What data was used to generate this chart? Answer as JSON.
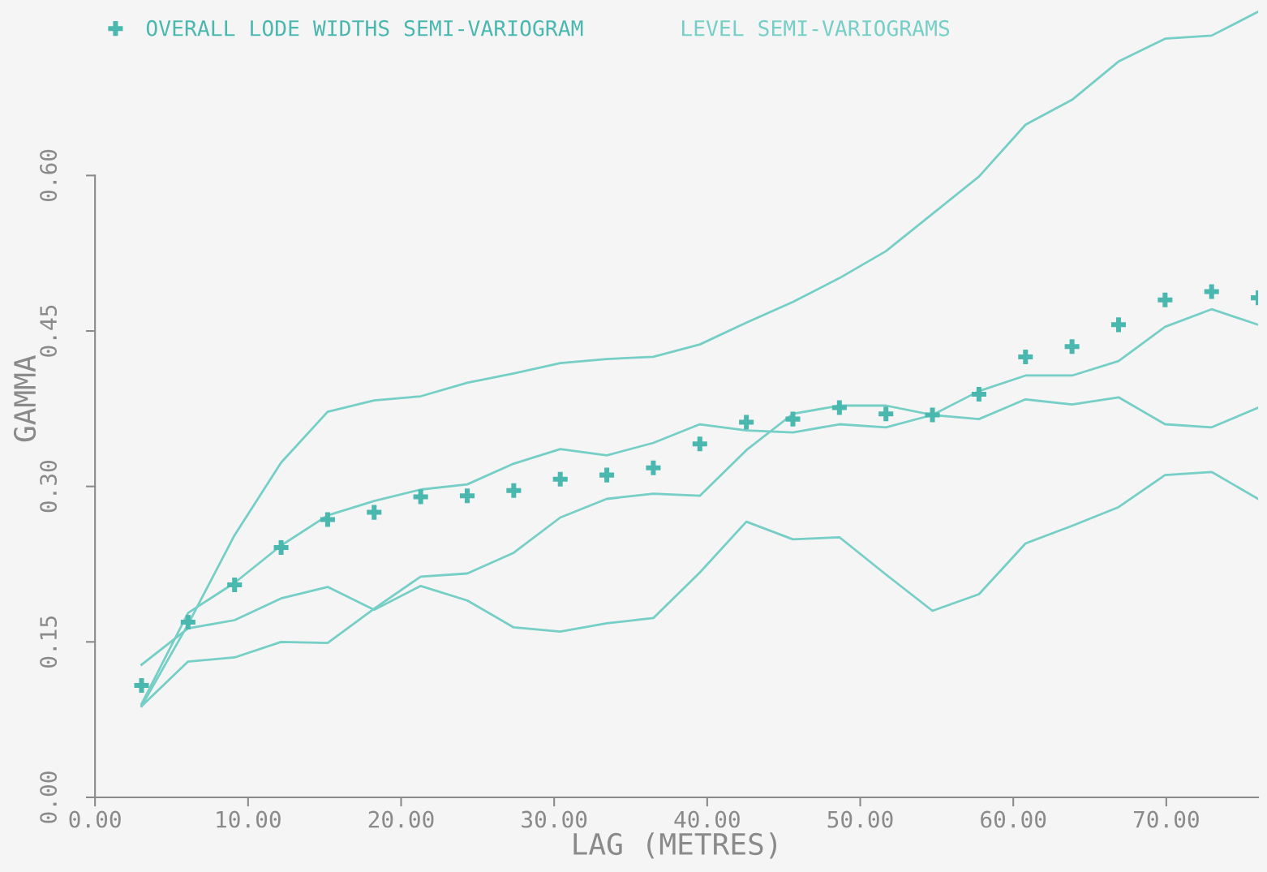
{
  "chart_data": {
    "type": "line",
    "xlabel": "LAG (METRES)",
    "ylabel": "GAMMA",
    "x": [
      3.04,
      6.08,
      9.12,
      12.16,
      15.2,
      18.24,
      21.28,
      24.32,
      27.36,
      30.4,
      33.44,
      36.48,
      39.52,
      42.56,
      45.6,
      48.64,
      51.68,
      54.72,
      57.76,
      60.8,
      63.84,
      66.88,
      69.92,
      72.96,
      76.0
    ],
    "series": [
      {
        "name": "OVERALL LODE WIDTHS SEMI-VARIOGRAM",
        "type": "scatter",
        "marker": "cross",
        "color": "#4bb8b0",
        "values": [
          0.108,
          0.169,
          0.205,
          0.241,
          0.268,
          0.275,
          0.29,
          0.291,
          0.296,
          0.307,
          0.311,
          0.318,
          0.341,
          0.362,
          0.365,
          0.376,
          0.37,
          0.369,
          0.389,
          0.425,
          0.435,
          0.456,
          0.48,
          0.488,
          0.482
        ]
      },
      {
        "name": "LEVEL SEMI-VARIOGRAMS",
        "color": "#76cfc6",
        "values": [
          0.088,
          0.167,
          0.253,
          0.323,
          0.372,
          0.383,
          0.387,
          0.4,
          0.409,
          0.419,
          0.423,
          0.425,
          0.437,
          0.458,
          0.478,
          0.501,
          0.527,
          0.563,
          0.599,
          0.649,
          0.673,
          0.71,
          0.732,
          0.735,
          0.758
        ]
      },
      {
        "color": "#76cfc6",
        "values": [
          0.128,
          0.163,
          0.171,
          0.192,
          0.203,
          0.181,
          0.204,
          0.19,
          0.164,
          0.16,
          0.168,
          0.173,
          0.217,
          0.266,
          0.249,
          0.251,
          0.215,
          0.18,
          0.196,
          0.245,
          0.262,
          0.28,
          0.311,
          0.314,
          0.288
        ]
      },
      {
        "color": "#76cfc6",
        "values": [
          0.09,
          0.178,
          0.207,
          0.243,
          0.272,
          0.286,
          0.297,
          0.302,
          0.322,
          0.336,
          0.33,
          0.342,
          0.36,
          0.354,
          0.352,
          0.36,
          0.357,
          0.369,
          0.365,
          0.384,
          0.379,
          0.386,
          0.36,
          0.357,
          0.376
        ]
      },
      {
        "color": "#76cfc6",
        "values": [
          0.088,
          0.131,
          0.135,
          0.15,
          0.149,
          0.182,
          0.213,
          0.216,
          0.236,
          0.27,
          0.288,
          0.293,
          0.291,
          0.335,
          0.37,
          0.378,
          0.378,
          0.369,
          0.392,
          0.407,
          0.407,
          0.421,
          0.454,
          0.471,
          0.456
        ]
      }
    ],
    "xlim": [
      0,
      76
    ],
    "ylim": [
      0,
      0.769
    ],
    "xticks": [
      {
        "value": 0,
        "label": "0.00"
      },
      {
        "value": 10,
        "label": "10.00"
      },
      {
        "value": 20,
        "label": "20.00"
      },
      {
        "value": 30,
        "label": "30.00"
      },
      {
        "value": 40,
        "label": "40.00"
      },
      {
        "value": 50,
        "label": "50.00"
      },
      {
        "value": 60,
        "label": "60.00"
      },
      {
        "value": 70,
        "label": "70.00"
      }
    ],
    "yticks": [
      {
        "value": 0,
        "label": "0.00"
      },
      {
        "value": 0.15,
        "label": "0.15"
      },
      {
        "value": 0.3,
        "label": "0.30"
      },
      {
        "value": 0.45,
        "label": "0.45"
      },
      {
        "value": 0.6,
        "label": "0.60"
      }
    ],
    "grid": false,
    "legend": "top left",
    "line_style": "solid"
  }
}
